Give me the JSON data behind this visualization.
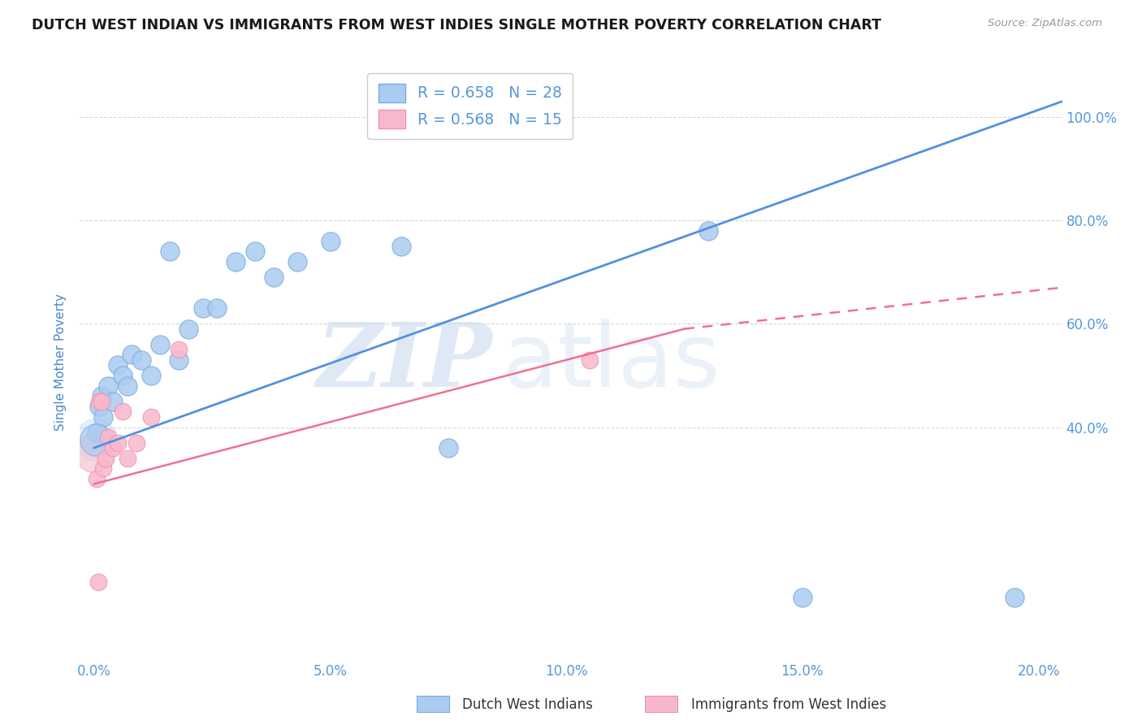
{
  "title": "DUTCH WEST INDIAN VS IMMIGRANTS FROM WEST INDIES SINGLE MOTHER POVERTY CORRELATION CHART",
  "source": "Source: ZipAtlas.com",
  "ylabel": "Single Mother Poverty",
  "x_tick_labels": [
    "0.0%",
    "5.0%",
    "10.0%",
    "15.0%",
    "20.0%"
  ],
  "x_tick_positions": [
    0.0,
    5.0,
    10.0,
    15.0,
    20.0
  ],
  "y_tick_labels": [
    "100.0%",
    "80.0%",
    "60.0%",
    "40.0%"
  ],
  "y_tick_positions": [
    100.0,
    80.0,
    60.0,
    40.0
  ],
  "xlim": [
    -0.3,
    20.5
  ],
  "ylim": [
    -5.0,
    110.0
  ],
  "blue_R": "0.658",
  "blue_N": "28",
  "pink_R": "0.568",
  "pink_N": "15",
  "blue_color": "#aaccf0",
  "pink_color": "#f8b8cb",
  "blue_marker_edge": "#7aaae0",
  "pink_marker_edge": "#f090b0",
  "blue_line_color": "#5590e0",
  "pink_line_color": "#f07090",
  "legend_label_blue": "Dutch West Indians",
  "legend_label_pink": "Immigrants from West Indies",
  "watermark_zip": "ZIP",
  "watermark_atlas": "atlas",
  "blue_scatter_x": [
    0.05,
    0.1,
    0.15,
    0.2,
    0.3,
    0.4,
    0.5,
    0.6,
    0.7,
    0.8,
    1.0,
    1.2,
    1.4,
    1.6,
    1.8,
    2.0,
    2.3,
    2.6,
    3.0,
    3.4,
    3.8,
    4.3,
    5.0,
    6.5,
    7.5,
    13.0,
    15.0,
    19.5
  ],
  "blue_scatter_y": [
    39.0,
    44.0,
    46.0,
    42.0,
    48.0,
    45.0,
    52.0,
    50.0,
    48.0,
    54.0,
    53.0,
    50.0,
    56.0,
    74.0,
    53.0,
    59.0,
    63.0,
    63.0,
    72.0,
    74.0,
    69.0,
    72.0,
    76.0,
    75.0,
    36.0,
    78.0,
    7.0,
    7.0
  ],
  "pink_scatter_x": [
    0.05,
    0.1,
    0.15,
    0.2,
    0.25,
    0.3,
    0.4,
    0.5,
    0.6,
    0.7,
    0.9,
    1.2,
    1.8,
    10.5,
    0.08
  ],
  "pink_scatter_y": [
    30.0,
    45.0,
    45.0,
    32.0,
    34.0,
    38.0,
    36.0,
    37.0,
    43.0,
    34.0,
    37.0,
    42.0,
    55.0,
    53.0,
    10.0
  ],
  "pink_scatter_large_x": [
    0.02
  ],
  "pink_scatter_large_y": [
    36.0
  ],
  "blue_line_x": [
    0.0,
    20.5
  ],
  "blue_line_y": [
    36.0,
    103.0
  ],
  "pink_solid_line_x": [
    0.0,
    12.5
  ],
  "pink_solid_line_y": [
    29.0,
    59.0
  ],
  "pink_dash_line_x": [
    12.5,
    20.5
  ],
  "pink_dash_line_y": [
    59.0,
    67.0
  ],
  "background_color": "#ffffff",
  "grid_color": "#d8d8d8",
  "title_color": "#1a1a1a",
  "axis_label_color": "#4488cc",
  "tick_label_color": "#5599dd",
  "source_color": "#999999"
}
